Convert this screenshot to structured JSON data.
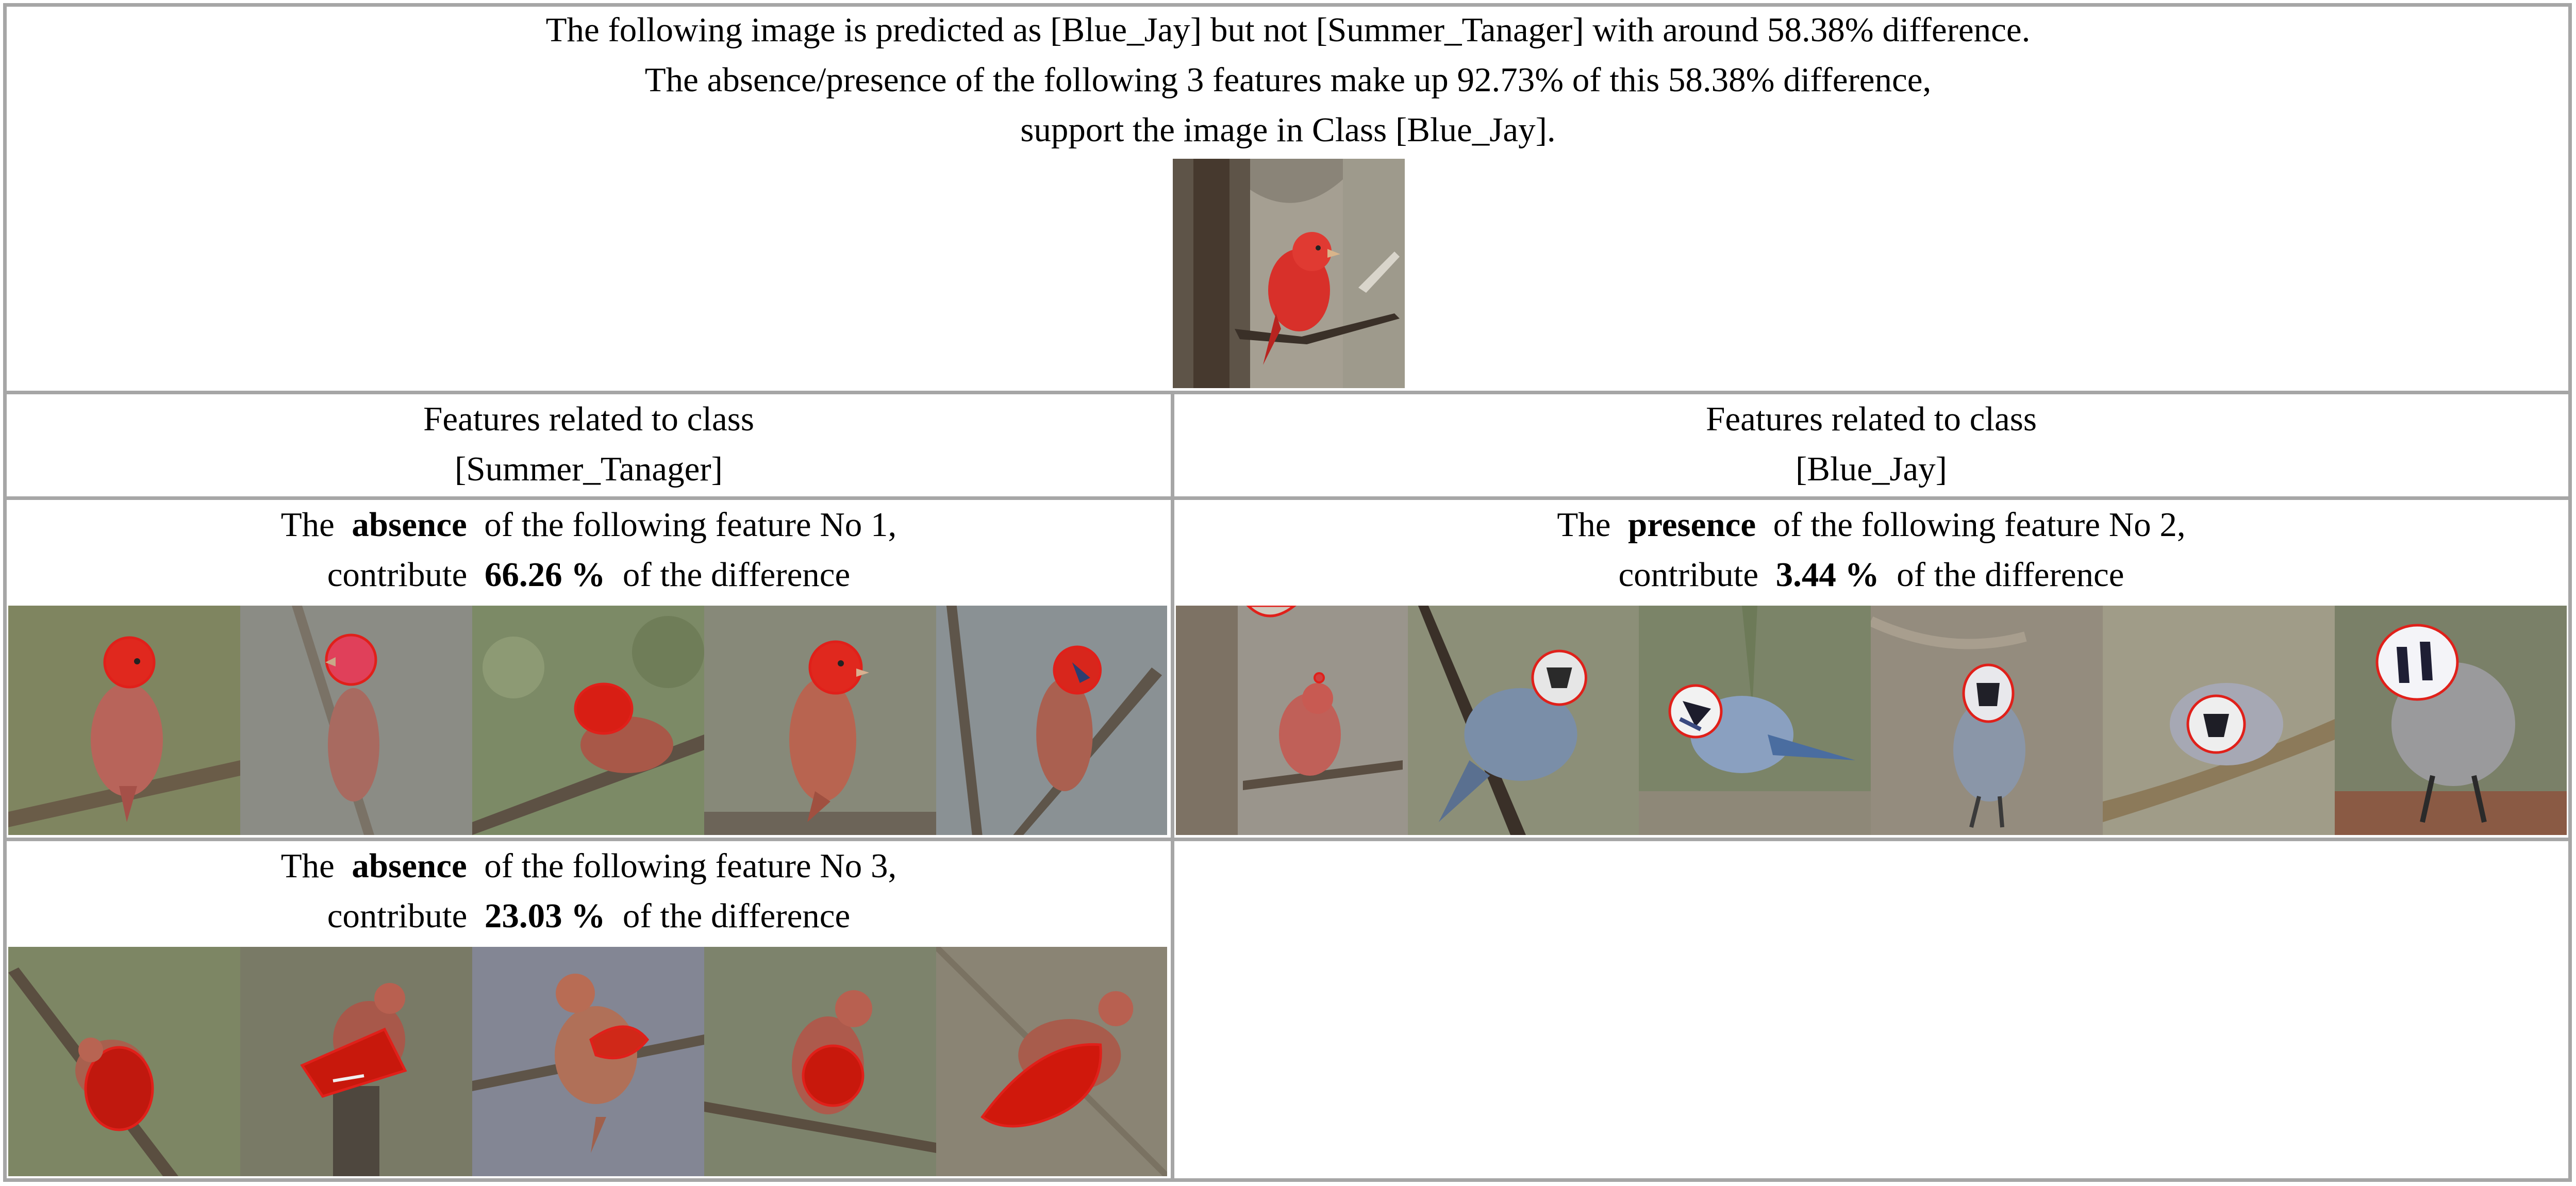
{
  "header": {
    "line1": "The following image is predicted as [Blue_Jay] but not [Summer_Tanager] with around 58.38% difference.",
    "line2": "The absence/presence of the following 3 features make up 92.73% of this 58.38% difference,",
    "line3": "support the image in Class [Blue_Jay]."
  },
  "columns": {
    "left": {
      "line1": "Features related to class",
      "line2": "[Summer_Tanager]"
    },
    "right": {
      "line1": "Features related to class",
      "line2": "[Blue_Jay]"
    }
  },
  "features": [
    {
      "pre": "The",
      "mode": "absence",
      "mid": "of the following feature No 1,",
      "c1": "contribute",
      "pct": "66.26 %",
      "c2": "of the difference"
    },
    {
      "pre": "The",
      "mode": "presence",
      "mid": "of the following feature No 2,",
      "c1": "contribute",
      "pct": "3.44 %",
      "c2": "of the difference"
    },
    {
      "pre": "The",
      "mode": "absence",
      "mid": "of the following feature No 3,",
      "c1": "contribute",
      "pct": "23.03 %",
      "c2": "of the difference"
    }
  ],
  "colors": {
    "border": "#a6a6a6",
    "tanager_red": "#d8302a",
    "outline": "#e0201a",
    "jay_blue": "#4a6da0"
  }
}
